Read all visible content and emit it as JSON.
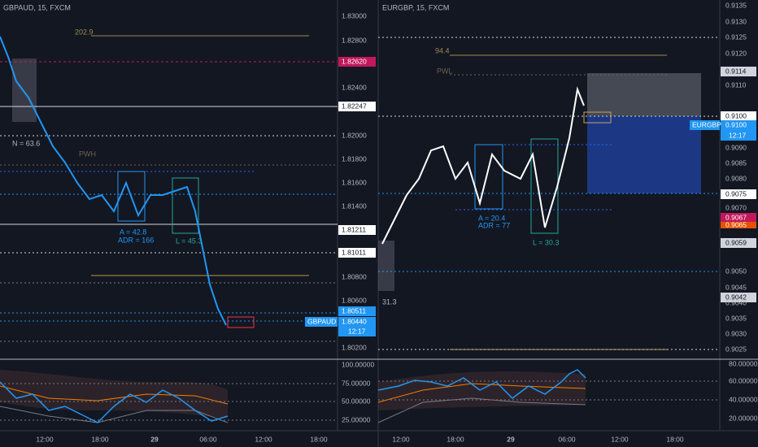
{
  "left": {
    "header": "GBPAUD, 15, FXCM",
    "price_ticks": [
      "1.83000",
      "1.82800",
      "1.82400",
      "1.82000",
      "1.81800",
      "1.81600",
      "1.81400",
      "1.80800",
      "1.80600",
      "1.80200"
    ],
    "price_labels": [
      "1.82620",
      "1.82247",
      "1.81211",
      "1.81011",
      "1.80511",
      "1.80440",
      "12:17"
    ],
    "symbol_tag": "GBPAUD",
    "annotations": [
      "202.9",
      "N = 63.6",
      "PWH",
      "A = 42.8",
      "ADR = 166",
      "L = 45.3"
    ],
    "indicator_ticks": [
      "100.00000",
      "75.00000",
      "50.00000",
      "25.00000"
    ],
    "time_labels": [
      "12:00",
      "18:00",
      "29",
      "06:00",
      "12:00",
      "18:00"
    ]
  },
  "right": {
    "header": "EURGBP, 15, FXCM",
    "price_ticks": [
      "0.9135",
      "0.9130",
      "0.9125",
      "0.9120",
      "0.9110",
      "0.9090",
      "0.9085",
      "0.9080",
      "0.9070",
      "0.9065",
      "0.9050",
      "0.9045",
      "0.9040",
      "0.9035",
      "0.9030",
      "0.9025"
    ],
    "price_labels": [
      "0.9114",
      "0.9100",
      "0.9100",
      "12:17",
      "0.9075",
      "0.9067",
      "0.9059",
      "0.9042"
    ],
    "symbol_tag": "EURGBP",
    "annotations": [
      "94.4",
      "PWL",
      "A = 20.4",
      "ADR = 77",
      "L = 30.3",
      "31.3"
    ],
    "indicator_ticks": [
      "80.00000",
      "60.00000",
      "40.00000",
      "20.00000"
    ],
    "time_labels": [
      "12:00",
      "18:00",
      "29",
      "06:00",
      "12:00",
      "18:00"
    ]
  }
}
